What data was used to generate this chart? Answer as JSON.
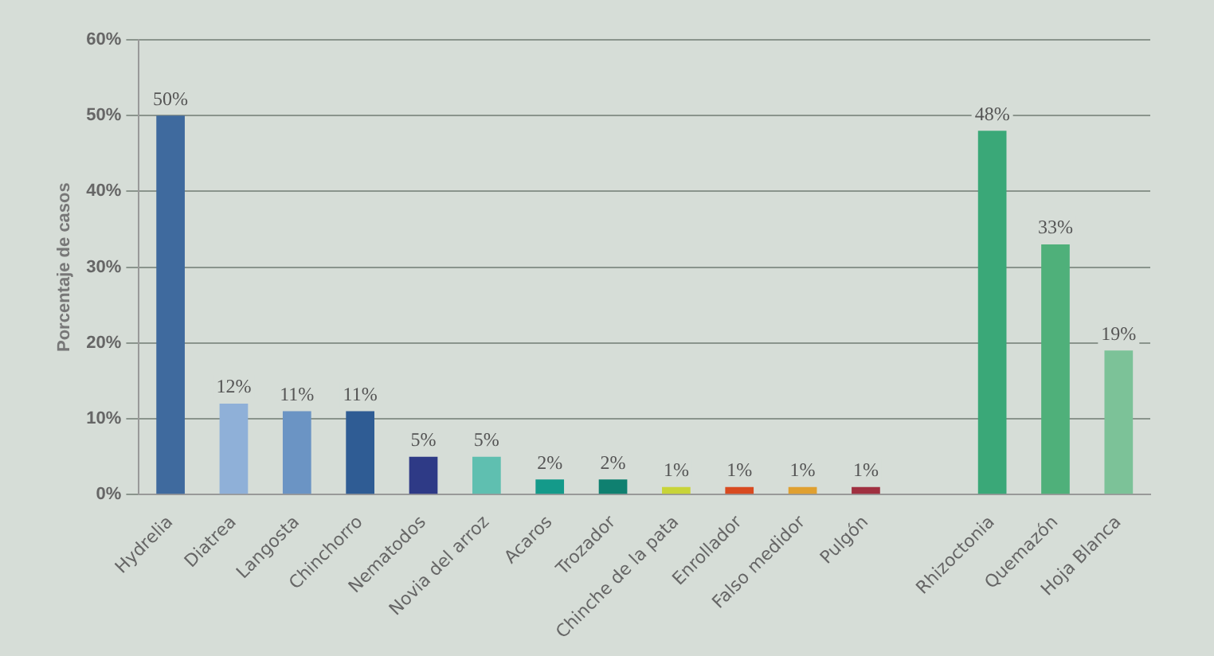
{
  "chart_data": {
    "type": "bar",
    "ylabel": "Porcentaje de casos",
    "categories": [
      "Hydrelia",
      "Diatrea",
      "Langosta",
      "Chinchorro",
      "Nematodos",
      "Novia del arroz",
      "Acaros",
      "Trozador",
      "Chinche de la pata",
      "Enrollador",
      "Falso medidor",
      "Pulgón",
      null,
      "Rhizoctonia",
      "Quemazón",
      "Hoja Blanca"
    ],
    "values": [
      50,
      12,
      11,
      11,
      5,
      5,
      2,
      2,
      1,
      1,
      1,
      1,
      null,
      48,
      33,
      19
    ],
    "value_labels": [
      "50%",
      "12%",
      "11%",
      "11%",
      "5%",
      "5%",
      "2%",
      "2%",
      "1%",
      "1%",
      "1%",
      "1%",
      null,
      "48%",
      "33%",
      "19%"
    ],
    "colors": [
      "#3f6a9e",
      "#8fb0d8",
      "#6b94c4",
      "#2f5c94",
      "#2e3a86",
      "#5fbfb0",
      "#149a8a",
      "#0f8070",
      "#c8d438",
      "#d84a20",
      "#e0a030",
      "#a03040",
      "#888888",
      "#3aa878",
      "#4fb07a",
      "#7cc298"
    ],
    "ylim": [
      0,
      60
    ],
    "yticks": [
      {
        "value": 0,
        "label": "0%"
      },
      {
        "value": 10,
        "label": "10%"
      },
      {
        "value": 20,
        "label": "20%"
      },
      {
        "value": 30,
        "label": "30%"
      },
      {
        "value": 40,
        "label": "40%"
      },
      {
        "value": 50,
        "label": "50%"
      },
      {
        "value": 60,
        "label": "60%"
      }
    ],
    "grid": "y",
    "legend": false
  }
}
